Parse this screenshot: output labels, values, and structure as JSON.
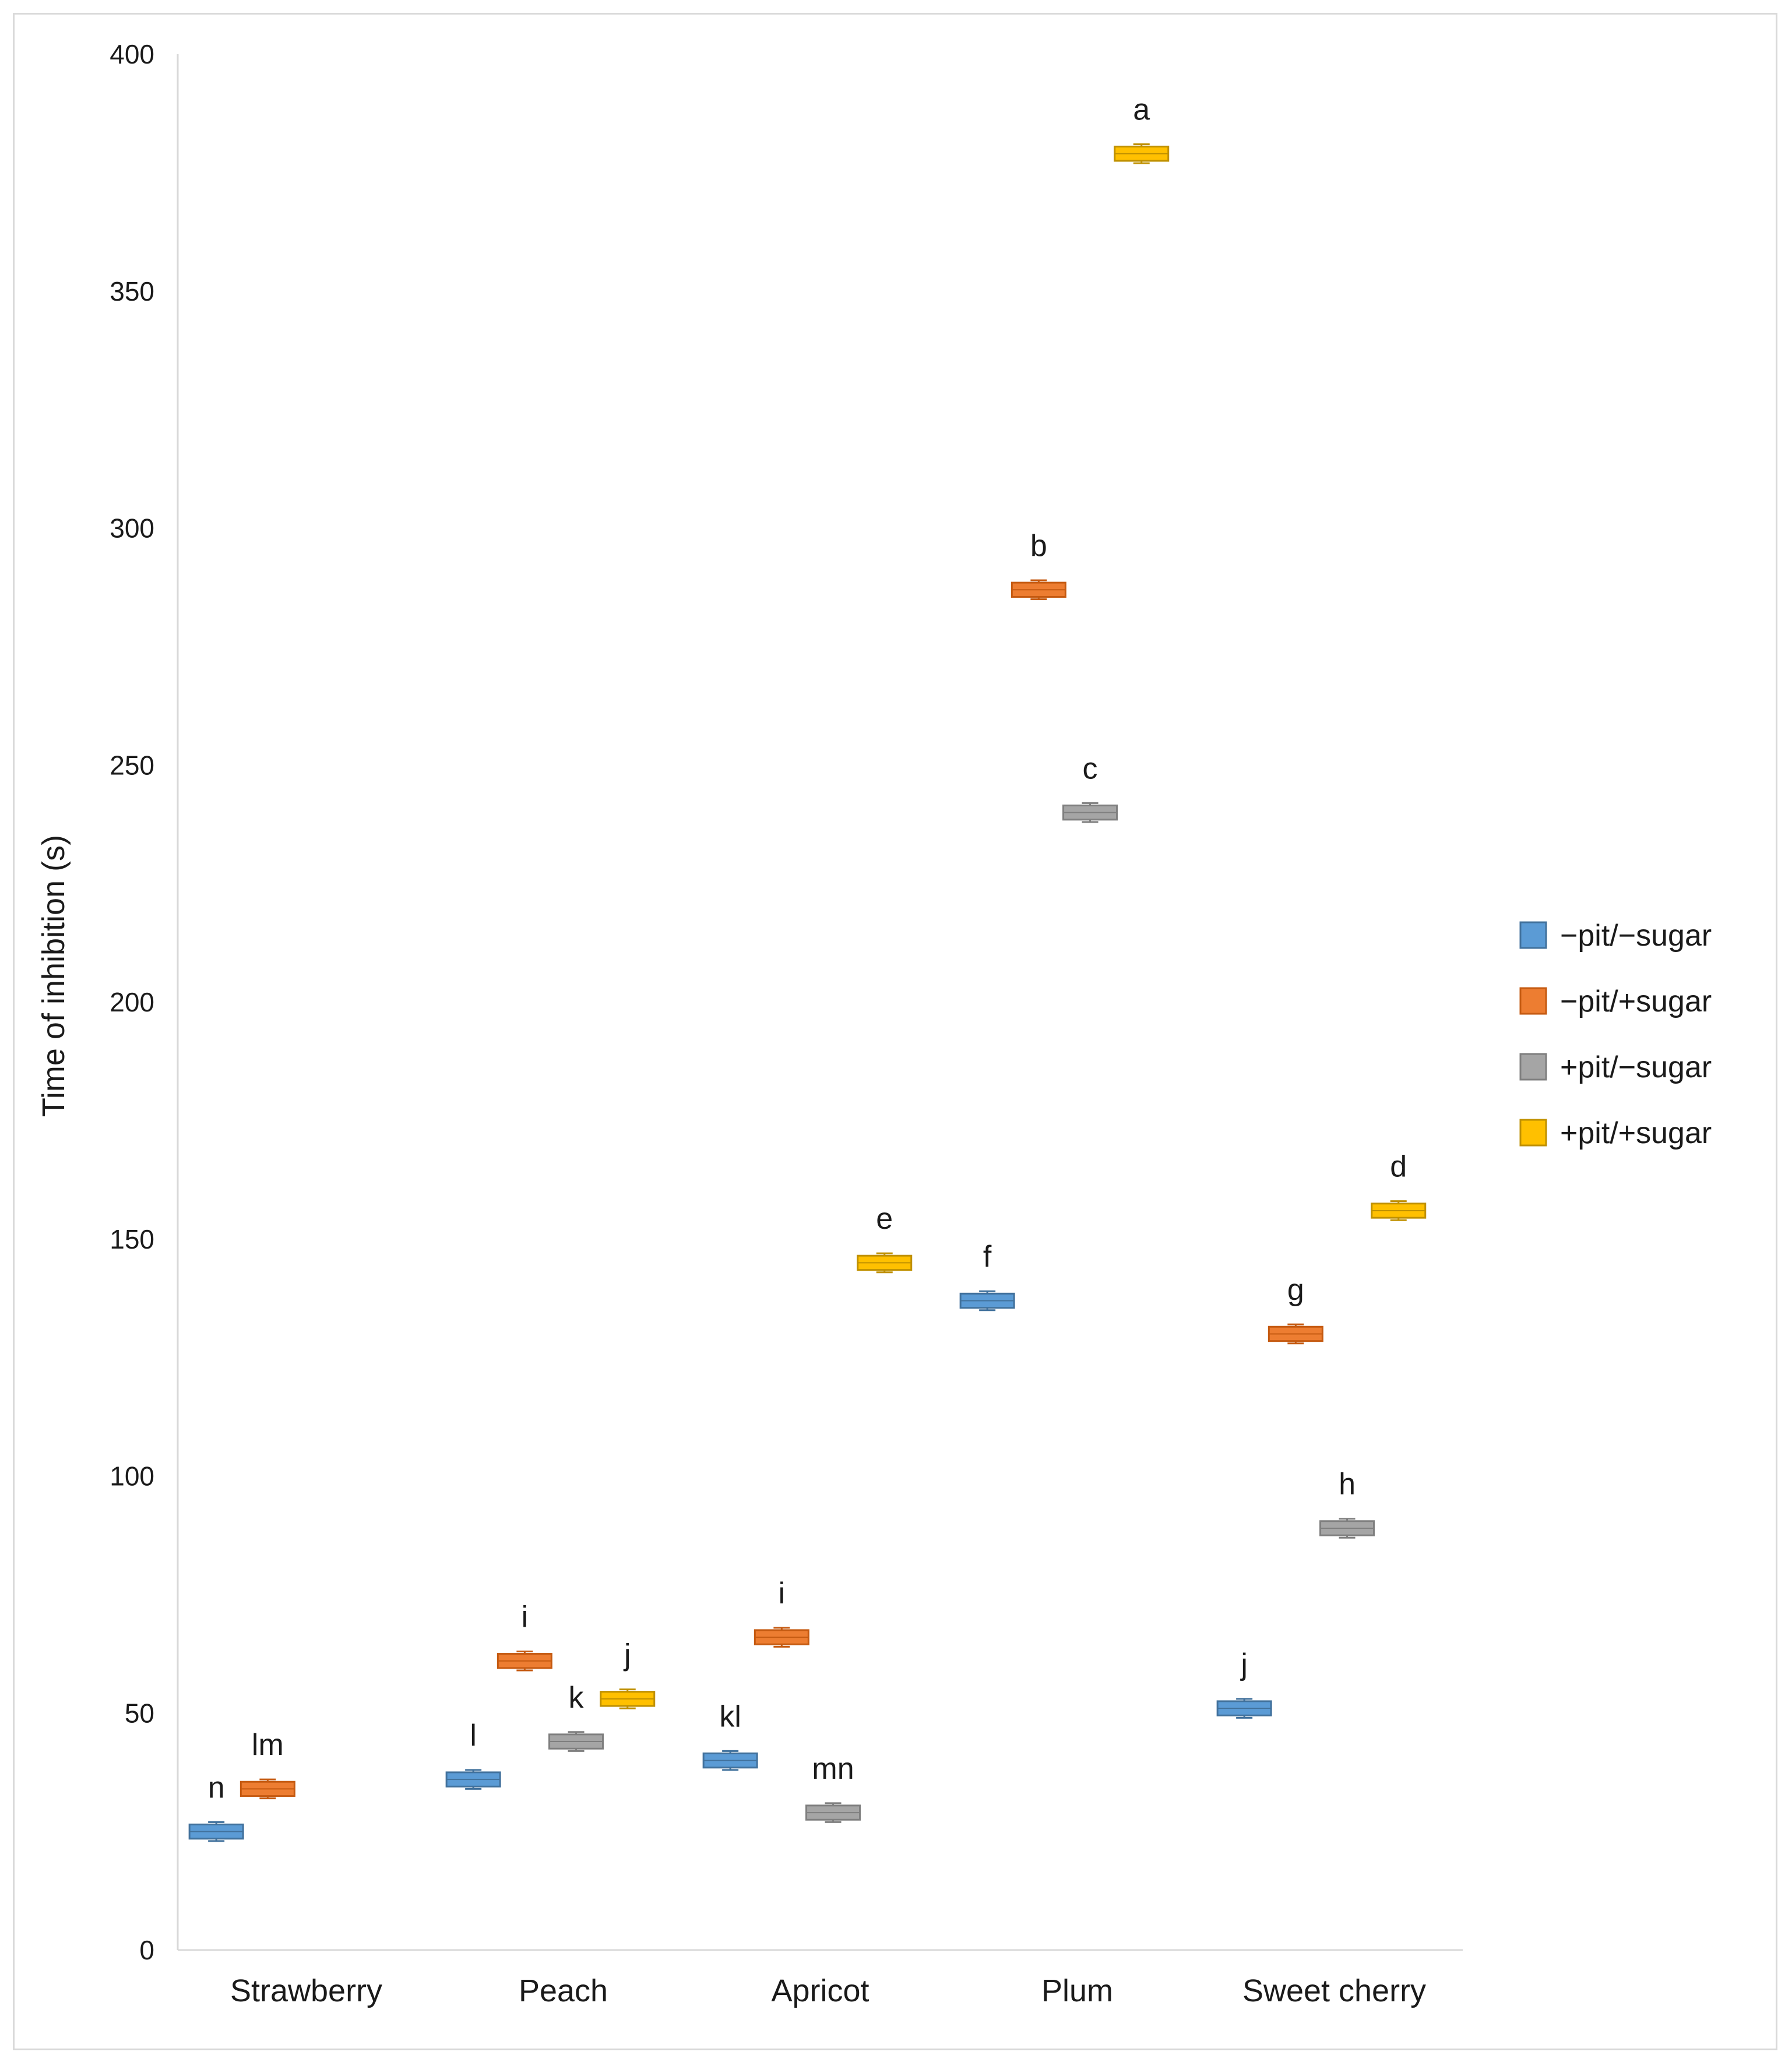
{
  "chart_data": {
    "type": "box",
    "title": "",
    "xlabel": "",
    "ylabel": "Time of inhibition (s)",
    "ylim": [
      0,
      400
    ],
    "yticks": [
      0,
      50,
      100,
      150,
      200,
      250,
      300,
      350,
      400
    ],
    "grid": false,
    "legend_position": "right",
    "categories": [
      "Strawberry",
      "Peach",
      "Apricot",
      "Plum",
      "Sweet cherry"
    ],
    "series": [
      {
        "name": "−pit/−sugar",
        "color": "#5b9bd5",
        "edge": "#41719c",
        "values": [
          25,
          36,
          40,
          137,
          51
        ],
        "letters": [
          "n",
          "l",
          "kl",
          "f",
          "j"
        ]
      },
      {
        "name": "−pit/+sugar",
        "color": "#ed7d31",
        "edge": "#c55a11",
        "values": [
          34,
          61,
          66,
          287,
          130
        ],
        "letters": [
          "lm",
          "i",
          "i",
          "b",
          "g"
        ]
      },
      {
        "name": "+pit/−sugar",
        "color": "#a5a5a5",
        "edge": "#7f7f7f",
        "values": [
          null,
          44,
          29,
          240,
          89
        ],
        "letters": [
          null,
          "k",
          "mn",
          "c",
          "h"
        ]
      },
      {
        "name": "+pit/+sugar",
        "color": "#ffc000",
        "edge": "#bf9000",
        "values": [
          null,
          53,
          145,
          379,
          156
        ],
        "letters": [
          null,
          "j",
          "e",
          "a",
          "d"
        ]
      }
    ],
    "box_half_range": 1.5,
    "whisker_half_range": 2
  }
}
